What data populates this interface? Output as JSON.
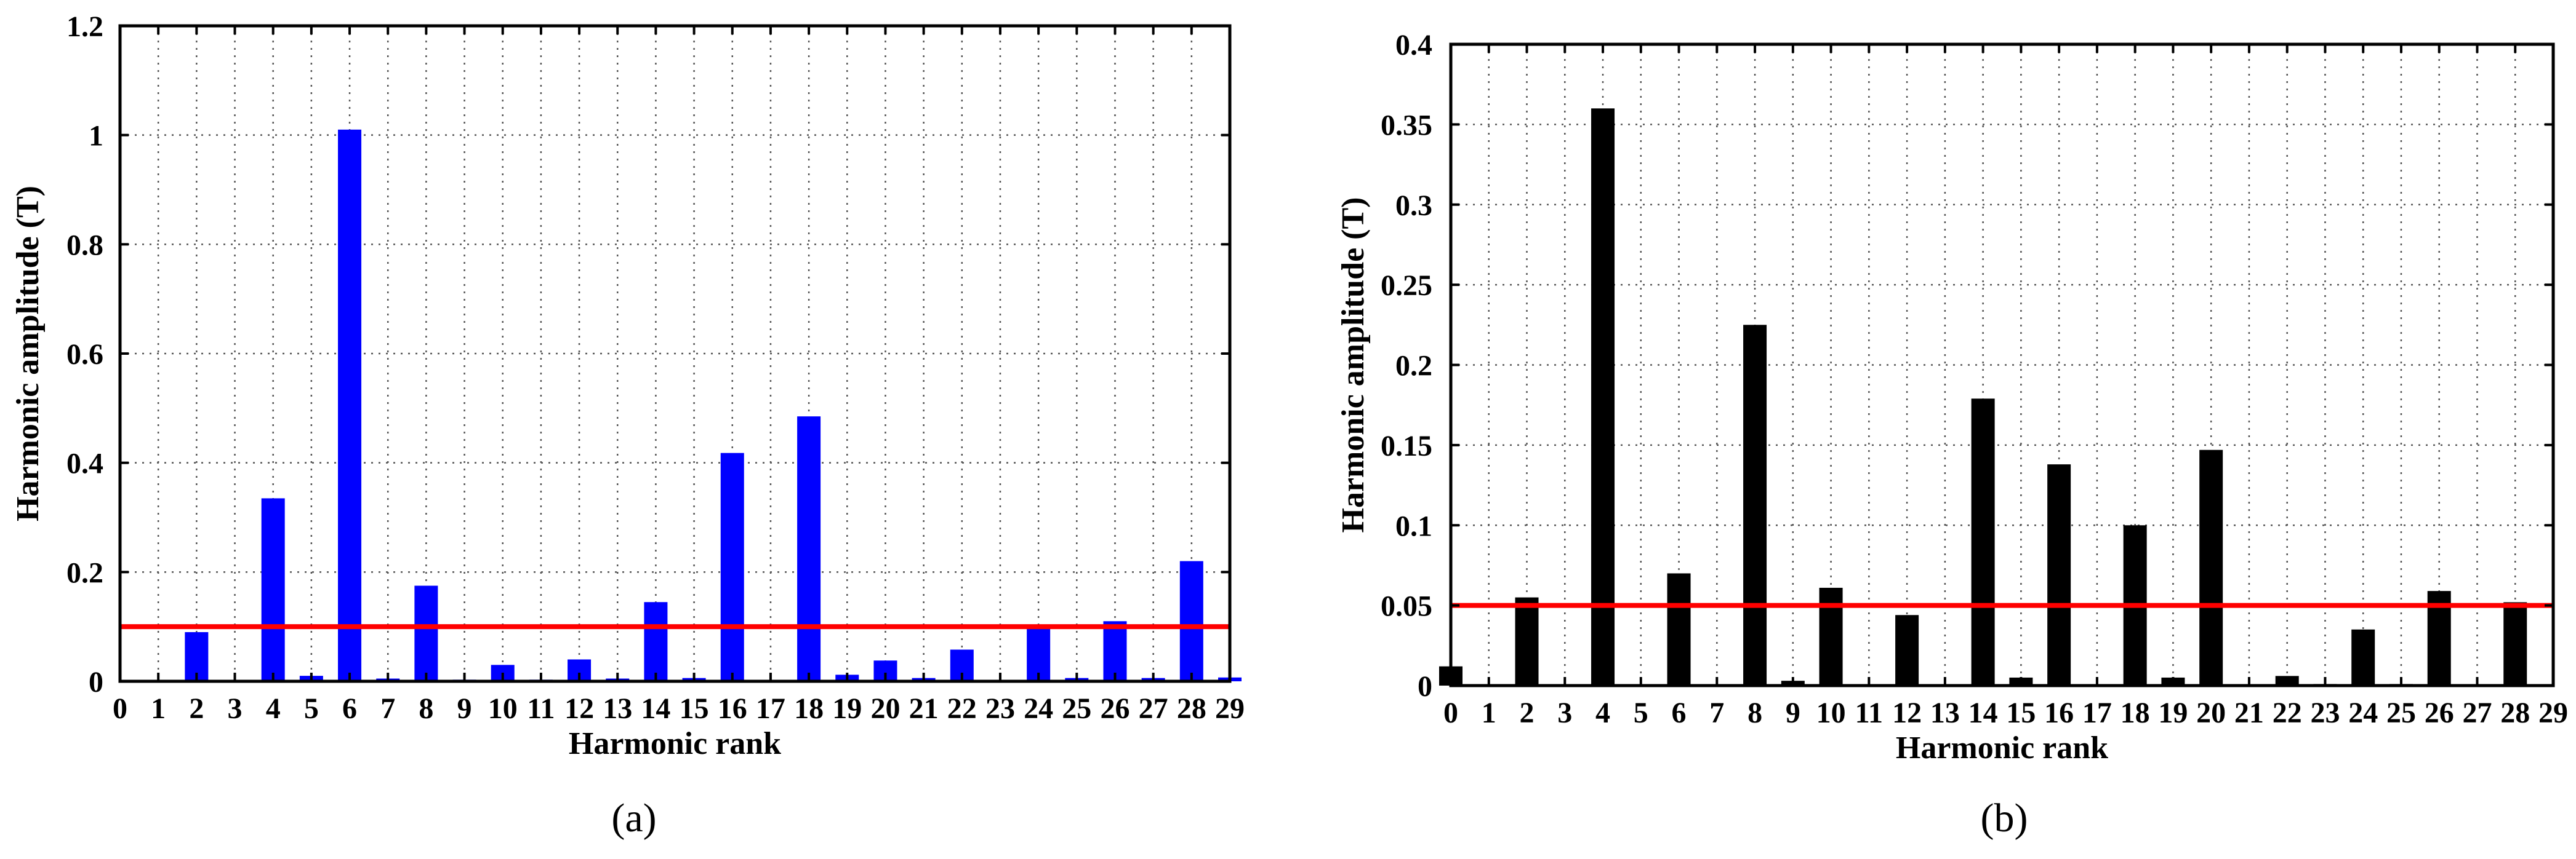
{
  "chart_data": [
    {
      "type": "bar",
      "panel_label": "(a)",
      "xlabel": "Harmonic rank",
      "ylabel": "Harmonic amplitude (T)",
      "categories": [
        0,
        1,
        2,
        3,
        4,
        5,
        6,
        7,
        8,
        9,
        10,
        11,
        12,
        13,
        14,
        15,
        16,
        17,
        18,
        19,
        20,
        21,
        22,
        23,
        24,
        25,
        26,
        27,
        28,
        29
      ],
      "x_tick_labels": [
        "0",
        "1",
        "2",
        "3",
        "4",
        "5",
        "6",
        "7",
        "8",
        "9",
        "10",
        "11",
        "12",
        "13",
        "14",
        "15",
        "16",
        "17",
        "18",
        "19",
        "20",
        "21",
        "22",
        "23",
        "24",
        "25",
        "26",
        "27",
        "28",
        "29"
      ],
      "values": [
        0,
        0,
        0.09,
        0,
        0.335,
        0.01,
        1.01,
        0.005,
        0.175,
        0.003,
        0.03,
        0.003,
        0.04,
        0.005,
        0.145,
        0.006,
        0.418,
        0,
        0.485,
        0.012,
        0.038,
        0.006,
        0.058,
        0,
        0.1,
        0.006,
        0.11,
        0.006,
        0.22,
        0.007
      ],
      "ylim": [
        0,
        1.2
      ],
      "y_ticks": [
        0,
        0.2,
        0.4,
        0.6,
        0.8,
        1,
        1.2
      ],
      "y_tick_labels": [
        "0",
        "0.2",
        "0.4",
        "0.6",
        "0.8",
        "1",
        "1.2"
      ],
      "reference_line": 0.1,
      "bar_color": "#0000ff",
      "reference_color": "#ff0000",
      "grid": true
    },
    {
      "type": "bar",
      "panel_label": "(b)",
      "xlabel": "Harmonic rank",
      "ylabel": "Harmonic amplitude (T)",
      "categories": [
        0,
        1,
        2,
        3,
        4,
        5,
        6,
        7,
        8,
        9,
        10,
        11,
        12,
        13,
        14,
        15,
        16,
        17,
        18,
        19,
        20,
        21,
        22,
        23,
        24,
        25,
        26,
        27,
        28,
        29
      ],
      "x_tick_labels": [
        "0",
        "1",
        "2",
        "3",
        "4",
        "5",
        "6",
        "7",
        "8",
        "9",
        "10",
        "11",
        "12",
        "13",
        "14",
        "15",
        "16",
        "17",
        "18",
        "19",
        "20",
        "21",
        "22",
        "23",
        "24",
        "25",
        "26",
        "27",
        "28",
        "29"
      ],
      "values": [
        0.012,
        0,
        0.055,
        0,
        0.36,
        0,
        0.07,
        0,
        0.225,
        0.003,
        0.061,
        0,
        0.044,
        0,
        0.179,
        0.005,
        0.138,
        0,
        0.1,
        0.005,
        0.147,
        0,
        0.006,
        0.001,
        0.035,
        0.001,
        0.059,
        0,
        0.052,
        0
      ],
      "ylim": [
        0,
        0.4
      ],
      "y_ticks": [
        0,
        0.05,
        0.1,
        0.15,
        0.2,
        0.25,
        0.3,
        0.35,
        0.4
      ],
      "y_tick_labels": [
        "0",
        "0.05",
        "0.1",
        "0.15",
        "0.2",
        "0.25",
        "0.3",
        "0.35",
        "0.4"
      ],
      "reference_line": 0.05,
      "bar_color": "#000000",
      "reference_color": "#ff0000",
      "grid": true
    }
  ]
}
